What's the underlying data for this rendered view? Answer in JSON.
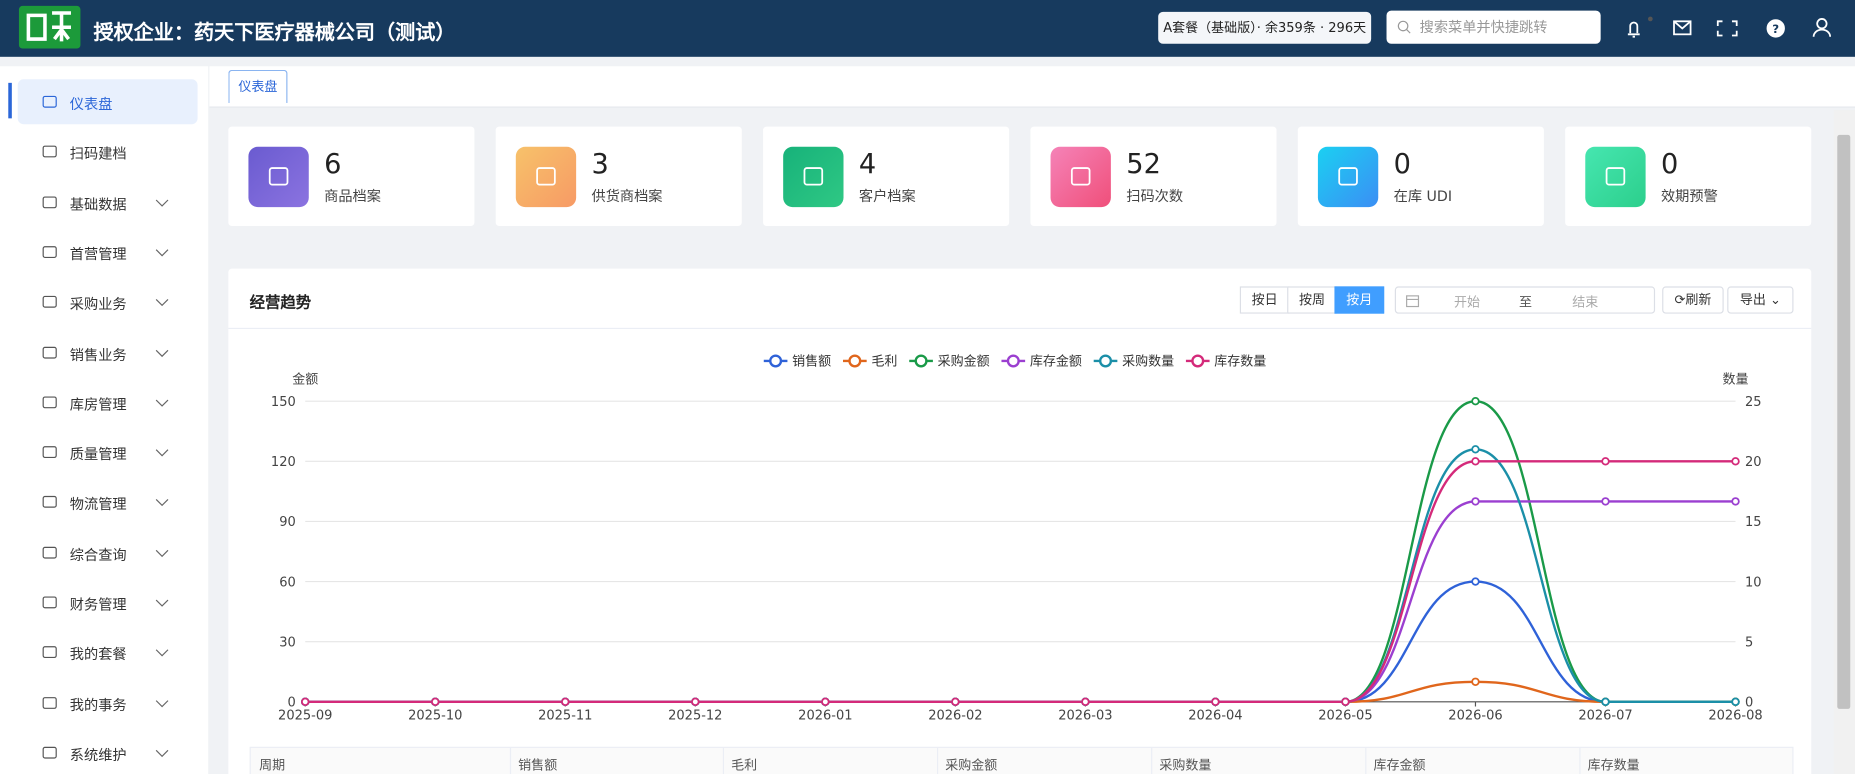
{
  "header": {
    "title": "授权企业：药天下医疗器械公司（测试）",
    "plan": "A套餐（基础版）· 余359条 · 296天",
    "search_placeholder": "搜索菜单并快捷跳转"
  },
  "sidebar": {
    "items": [
      {
        "label": "仪表盘",
        "expandable": false
      },
      {
        "label": "扫码建档",
        "expandable": false
      },
      {
        "label": "基础数据",
        "expandable": true
      },
      {
        "label": "首营管理",
        "expandable": true
      },
      {
        "label": "采购业务",
        "expandable": true
      },
      {
        "label": "销售业务",
        "expandable": true
      },
      {
        "label": "库房管理",
        "expandable": true
      },
      {
        "label": "质量管理",
        "expandable": true
      },
      {
        "label": "物流管理",
        "expandable": true
      },
      {
        "label": "综合查询",
        "expandable": true
      },
      {
        "label": "财务管理",
        "expandable": true
      },
      {
        "label": "我的套餐",
        "expandable": true
      },
      {
        "label": "我的事务",
        "expandable": true
      },
      {
        "label": "系统维护",
        "expandable": true
      }
    ]
  },
  "tabs": [
    "仪表盘"
  ],
  "stats": [
    {
      "value": 6,
      "label": "商品档案"
    },
    {
      "value": 3,
      "label": "供货商档案"
    },
    {
      "value": 4,
      "label": "客户档案"
    },
    {
      "value": 52,
      "label": "扫码次数"
    },
    {
      "value": 0,
      "label": "在库 UDI"
    },
    {
      "value": 0,
      "label": "效期预警"
    }
  ],
  "panel": {
    "title": "经营趋势",
    "periods": [
      "按日",
      "按周",
      "按月"
    ],
    "date_start": "开始",
    "date_sep": "至",
    "date_end": "结束",
    "refresh": "刷新",
    "export": "导出"
  },
  "table": {
    "headers": [
      "周期",
      "销售额",
      "毛利",
      "采购金额",
      "采购数量",
      "库存金额",
      "库存数量"
    ]
  },
  "chart_data": {
    "type": "line",
    "smooth": true,
    "categories": [
      "2025-09",
      "2025-10",
      "2025-11",
      "2025-12",
      "2026-01",
      "2026-02",
      "2026-03",
      "2026-04",
      "2026-05",
      "2026-06",
      "2026-07",
      "2026-08"
    ],
    "ylabel": "金额",
    "y2label": "数量",
    "ylim": [
      0,
      150
    ],
    "yticks": [
      0,
      30,
      60,
      90,
      120,
      150
    ],
    "y2lim": [
      0,
      25
    ],
    "y2ticks": [
      0,
      5,
      10,
      15,
      20,
      25
    ],
    "grid": true,
    "series": [
      {
        "name": "销售额",
        "color": "#2f62d8",
        "values": [
          0,
          0,
          0,
          0,
          0,
          0,
          0,
          0,
          0,
          60,
          0,
          0
        ]
      },
      {
        "name": "毛利",
        "color": "#e0661c",
        "values": [
          0,
          0,
          0,
          0,
          0,
          0,
          0,
          0,
          0,
          10,
          0,
          0
        ]
      },
      {
        "name": "采购金额",
        "color": "#1a9a48",
        "values": [
          0,
          0,
          0,
          0,
          0,
          0,
          0,
          0,
          0,
          150,
          0,
          0
        ]
      },
      {
        "name": "库存金额",
        "color": "#9b3fd0",
        "values": [
          0,
          0,
          0,
          0,
          0,
          0,
          0,
          0,
          0,
          100,
          100,
          100
        ]
      },
      {
        "name": "采购数量",
        "color": "#1b8fa8",
        "axis": "y2",
        "values": [
          0,
          0,
          0,
          0,
          0,
          0,
          0,
          0,
          0,
          21,
          0,
          0
        ]
      },
      {
        "name": "库存数量",
        "color": "#d42a7a",
        "axis": "y2",
        "values": [
          0,
          0,
          0,
          0,
          0,
          0,
          0,
          0,
          0,
          20,
          20,
          20
        ]
      }
    ]
  }
}
